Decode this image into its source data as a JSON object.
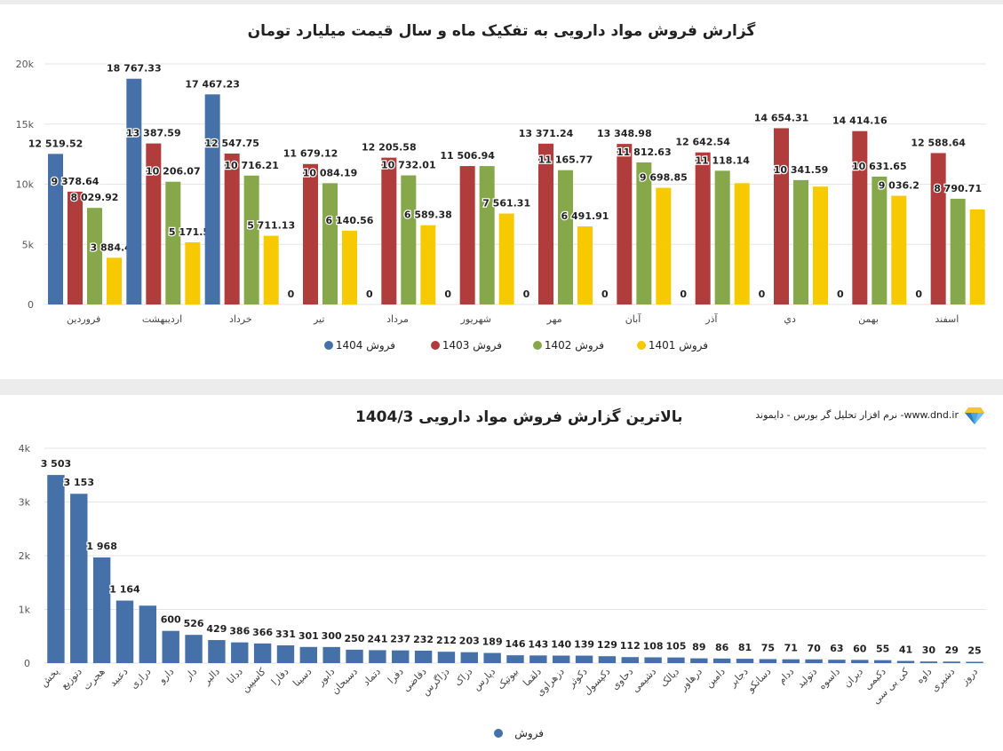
{
  "chart1": {
    "title": "گزارش فروش مواد دارویی به تفکیک ماه و سال قیمت میلیارد تومان",
    "chart_data": {
      "type": "bar",
      "categories": [
        "فروردین",
        "اردیبهشت",
        "خرداد",
        "تیر",
        "مرداد",
        "شهریور",
        "مهر",
        "آبان",
        "آذر",
        "دي",
        "بهمن",
        "اسفند"
      ],
      "ylim": [
        0,
        20000
      ],
      "yticks": [
        "0",
        "5k",
        "10k",
        "15k",
        "20k"
      ],
      "grid": true,
      "legend_position": "bottom",
      "series": [
        {
          "name": "فروش 1404",
          "color": "#4571a8",
          "values": [
            12519.52,
            18767.33,
            17467.23,
            0,
            0,
            0,
            0,
            0,
            0,
            0,
            0,
            0
          ],
          "labels": [
            "12 519.52",
            "18 767.33",
            "17 467.23",
            "0",
            "0",
            "0",
            "0",
            "0",
            "0",
            "0",
            "0",
            "0"
          ]
        },
        {
          "name": "فروش 1403",
          "color": "#b03c3c",
          "values": [
            9378.64,
            13387.59,
            12547.75,
            11679.12,
            12205.58,
            11506.94,
            13371.24,
            13348.98,
            12642.54,
            14654.31,
            14414.16,
            12588.64
          ],
          "labels": [
            "9 378.64",
            "13 387.59",
            "12 547.75",
            "11 679.12",
            "12 205.58",
            "11 506.94",
            "13 371.24",
            "13 348.98",
            "12 642.54",
            "14 654.31",
            "14 414.16",
            "12 588.64"
          ]
        },
        {
          "name": "فروش 1402",
          "color": "#86a84a",
          "values": [
            8029.92,
            10206.07,
            10716.21,
            10084.19,
            10732.01,
            11506.94,
            11165.77,
            11812.63,
            11118.14,
            10341.59,
            10631.65,
            8790.71
          ],
          "labels": [
            "8 029.92",
            "10 206.07",
            "10 716.21",
            "10 084.19",
            "10 732.01",
            "",
            "11 165.77",
            "11 812.63",
            "11 118.14",
            "10 341.59",
            "10 631.65",
            "8 790.71"
          ]
        },
        {
          "name": "فروش 1401",
          "color": "#f7c900",
          "values": [
            3884.42,
            5171.51,
            5711.13,
            6140.56,
            6589.38,
            7561.31,
            6491.91,
            9698.85,
            10084.19,
            9800,
            9036.2,
            7900
          ],
          "labels": [
            "3 884.42",
            "5 171.51",
            "5 711.13",
            "6 140.56",
            "6 589.38",
            "7 561.31",
            "6 491.91",
            "9 698.85",
            "",
            "",
            "9 036.2",
            ""
          ]
        }
      ]
    }
  },
  "chart2": {
    "title": "بالاترین گزارش فروش مواد دارویی 1404/3",
    "brand": "نرم افزار تحلیل گر بورس - دایموند -www.dnd.ir",
    "chart_data": {
      "type": "bar",
      "ylim": [
        0,
        4000
      ],
      "yticks": [
        "0",
        "1k",
        "2k",
        "3k",
        "4k"
      ],
      "grid": true,
      "legend_position": "bottom",
      "series": [
        {
          "name": "فروش",
          "color": "#4571a8"
        }
      ],
      "categories": [
        "پخش",
        "دتوزیع",
        "هجرت",
        "دعبید",
        "درازی",
        "دارو",
        "دار",
        "دالبر",
        "ددانا",
        "کاسپین",
        "دفارا",
        "دسینا",
        "دابور",
        "دسبحان",
        "دتماد",
        "دفرا",
        "دقاضی",
        "دژاگرس",
        "دزاک",
        "دپارس",
        "بیوتیک",
        "دلقما",
        "دزهراوی",
        "دکوثر",
        "دکپسول",
        "دحاوی",
        "دشیمی",
        "دیالک",
        "درهاور",
        "دامین",
        "دجابر",
        "دسانکو",
        "ددام",
        "دتولید",
        "داسوه",
        "دیران",
        "دکیمی",
        "کی بی سی",
        "داوه",
        "دشیری",
        "دروز"
      ],
      "values": [
        3503,
        3153,
        1968,
        1164,
        1070,
        600,
        526,
        429,
        386,
        366,
        331,
        301,
        300,
        250,
        241,
        237,
        232,
        212,
        203,
        189,
        146,
        143,
        140,
        139,
        129,
        112,
        108,
        105,
        89,
        86,
        81,
        75,
        71,
        70,
        63,
        60,
        55,
        41,
        30,
        29,
        25
      ],
      "labels": [
        "3 503",
        "3 153",
        "1 968",
        "1 164",
        "",
        "600",
        "526",
        "429",
        "386",
        "366",
        "331",
        "301",
        "300",
        "250",
        "241",
        "237",
        "232",
        "212",
        "203",
        "189",
        "146",
        "143",
        "140",
        "139",
        "129",
        "112",
        "108",
        "105",
        "89",
        "86",
        "81",
        "75",
        "71",
        "70",
        "63",
        "60",
        "55",
        "41",
        "30",
        "29",
        "25"
      ]
    }
  }
}
